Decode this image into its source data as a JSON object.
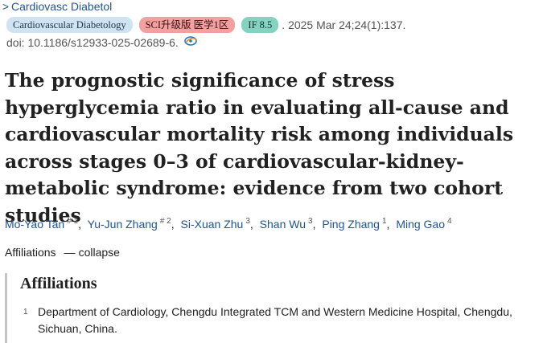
{
  "journal": {
    "chevron": ">",
    "name": "Cardiovasc Diabetol"
  },
  "badges": {
    "journal_full": "Cardiovascular Diabetology",
    "sci_rank": "SCI升级版 医学1区",
    "impact_factor": "IF 8.5"
  },
  "citation": ". 2025 Mar 24;24(1):137.",
  "doi": "doi: 10.1186/s12933-025-02689-6.",
  "title": "The prognostic significance of stress hyperglycemia ratio in evaluating all-cause and cardiovascular mortality risk among individuals across stages 0–3 of cardiovascular-kidney-metabolic syndrome: evidence from two cohort studies",
  "authors": [
    {
      "name": "Mo-Yao Tan",
      "sup": "# 1"
    },
    {
      "name": "Yu-Jun Zhang",
      "sup": "# 2"
    },
    {
      "name": "Si-Xuan Zhu",
      "sup": "3"
    },
    {
      "name": "Shan Wu",
      "sup": "3"
    },
    {
      "name": "Ping Zhang",
      "sup": "1"
    },
    {
      "name": "Ming Gao",
      "sup": "4"
    }
  ],
  "affiliations_toggle": {
    "label": "Affiliations",
    "dash": "—",
    "action": "collapse"
  },
  "affiliations": {
    "heading": "Affiliations",
    "items": [
      {
        "num": "1",
        "text": "Department of Cardiology, Chengdu Integrated TCM and Western Medicine Hospital, Chengdu, Sichuan, China."
      }
    ]
  },
  "colors": {
    "link": "#205493",
    "badge_journal": "#cfe3f3",
    "badge_sci": "#f3a0a0",
    "badge_if": "#86d2c2"
  },
  "icons": {
    "open_access": "open-access-icon"
  }
}
